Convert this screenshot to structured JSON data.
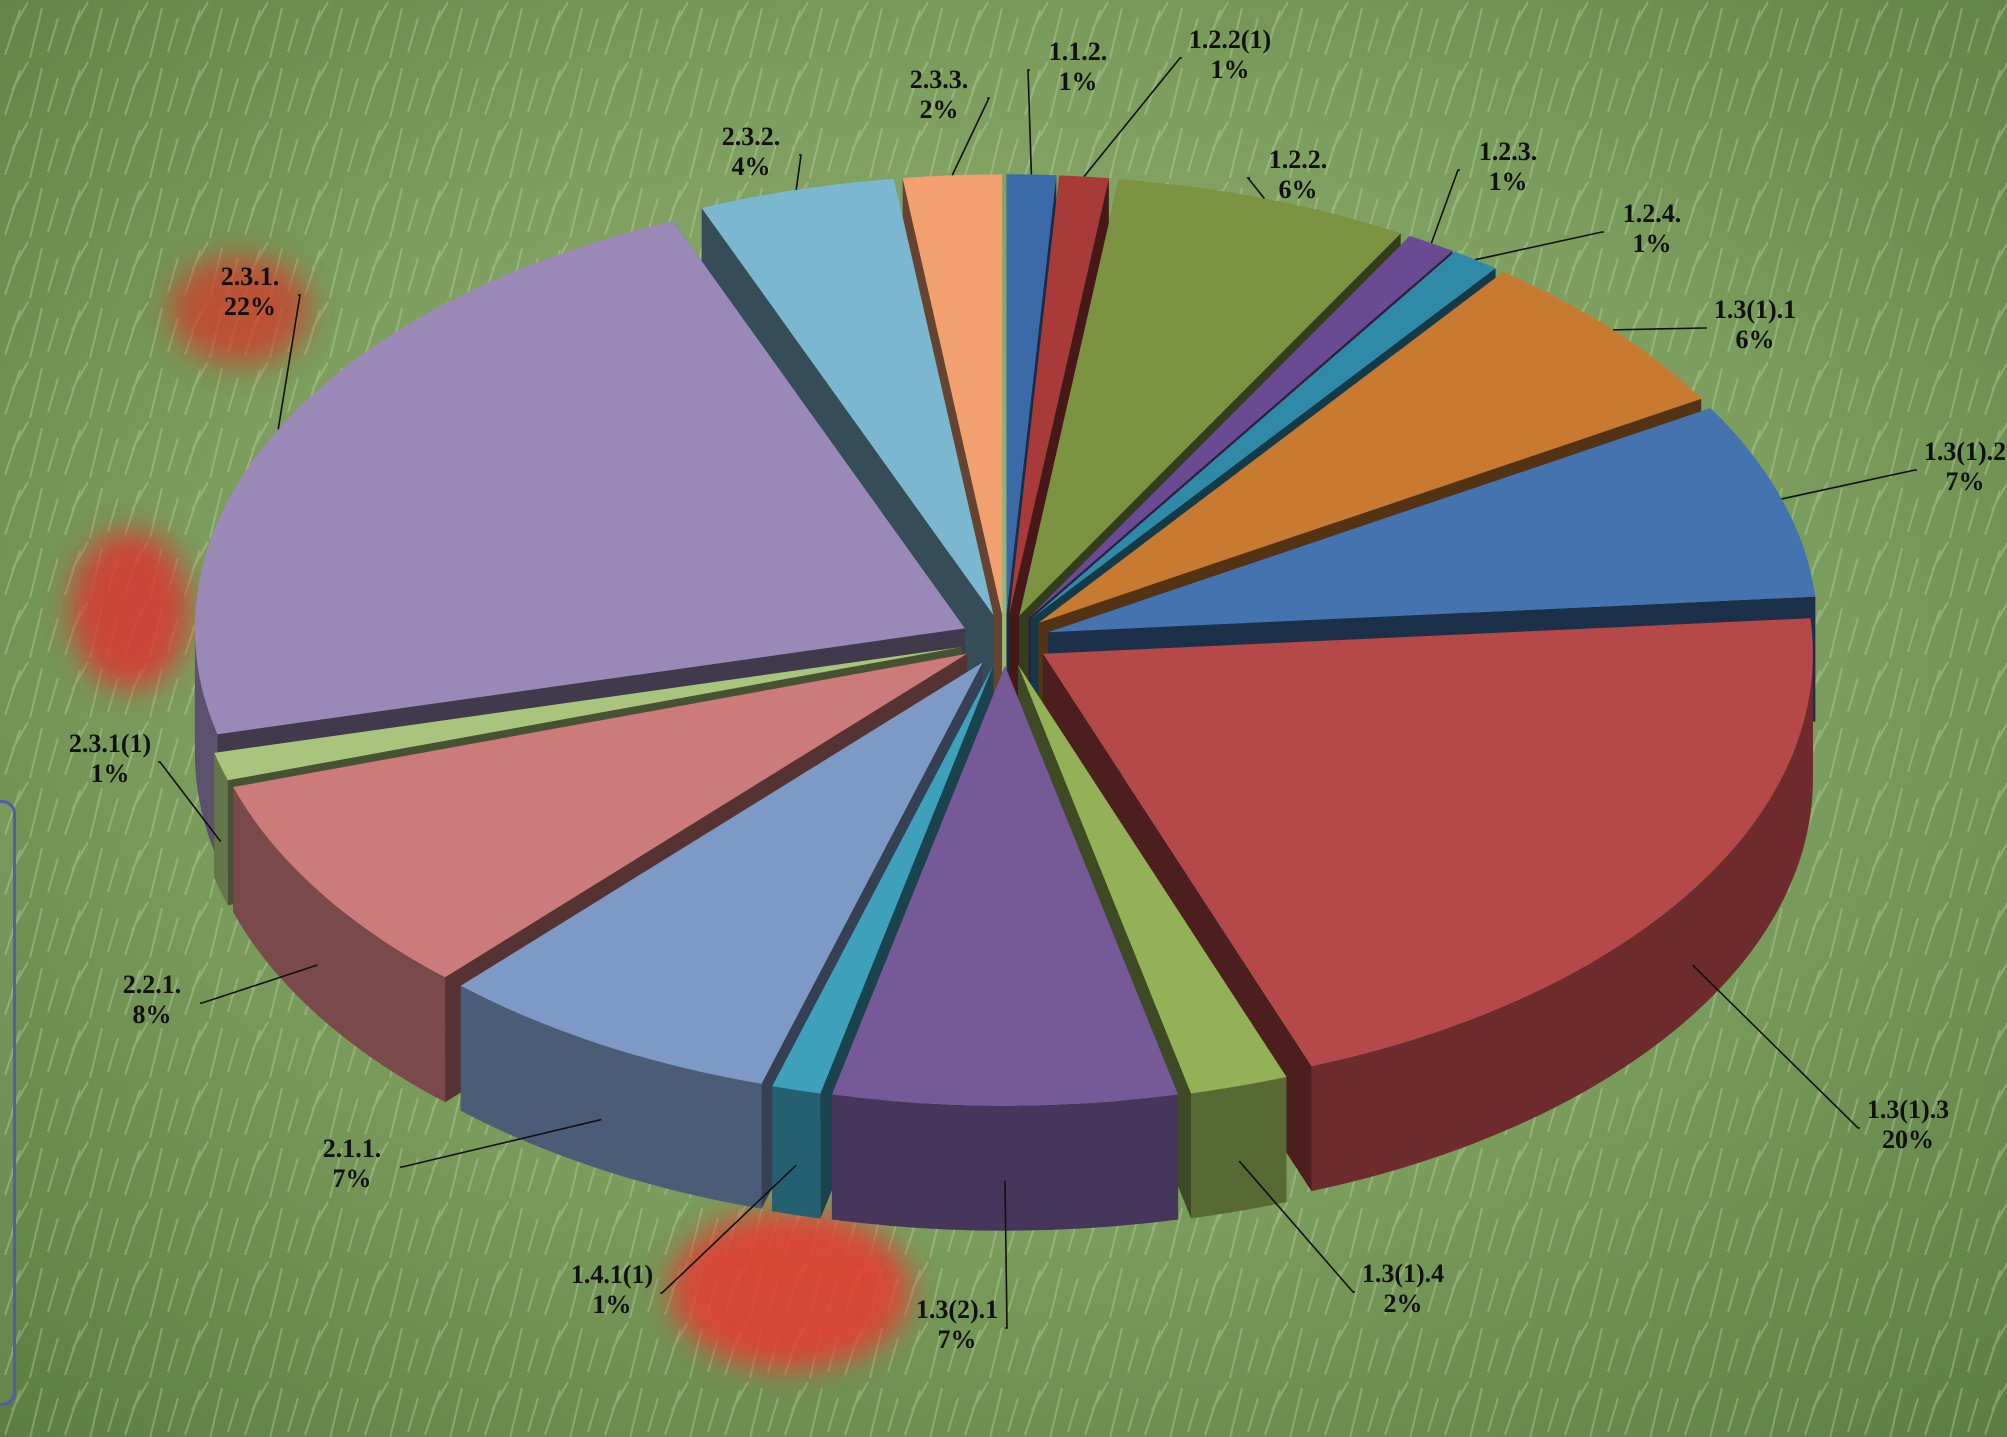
{
  "chart_data": {
    "type": "pie",
    "style": "3d-exploded",
    "title": "",
    "legend": "none",
    "slices": [
      {
        "label": "1.1.2.",
        "value": 1,
        "display": "1%",
        "color": "#3a6aa8"
      },
      {
        "label": "1.2.2(1)",
        "value": 1,
        "display": "1%",
        "color": "#a83a3a"
      },
      {
        "label": "1.2.2.",
        "value": 6,
        "display": "6%",
        "color": "#7c9442"
      },
      {
        "label": "1.2.3.",
        "value": 1,
        "display": "1%",
        "color": "#6a4a92"
      },
      {
        "label": "1.2.4.",
        "value": 1,
        "display": "1%",
        "color": "#2e8aa6"
      },
      {
        "label": "1.3(1).1",
        "value": 6,
        "display": "6%",
        "color": "#c87a30"
      },
      {
        "label": "1.3(1).2",
        "value": 7,
        "display": "7%",
        "color": "#4473b0"
      },
      {
        "label": "1.3(1).3",
        "value": 20,
        "display": "20%",
        "color": "#b54848"
      },
      {
        "label": "1.3(1).4",
        "value": 2,
        "display": "2%",
        "color": "#93b156"
      },
      {
        "label": "1.3(2).1",
        "value": 7,
        "display": "7%",
        "color": "#765a98"
      },
      {
        "label": "1.4.1(1)",
        "value": 1,
        "display": "1%",
        "color": "#3ea0ba"
      },
      {
        "label": "2.1.1.",
        "value": 7,
        "display": "7%",
        "color": "#7d9ac6"
      },
      {
        "label": "2.2.1.",
        "value": 8,
        "display": "8%",
        "color": "#cc7a7a"
      },
      {
        "label": "2.3.1(1)",
        "value": 1,
        "display": "1%",
        "color": "#a9c47c"
      },
      {
        "label": "2.3.1.",
        "value": 22,
        "display": "22%",
        "color": "#9a88b6"
      },
      {
        "label": "2.3.2.",
        "value": 4,
        "display": "4%",
        "color": "#7bb8d0"
      },
      {
        "label": "2.3.3.",
        "value": 2,
        "display": "2%",
        "color": "#f2a070"
      }
    ]
  }
}
